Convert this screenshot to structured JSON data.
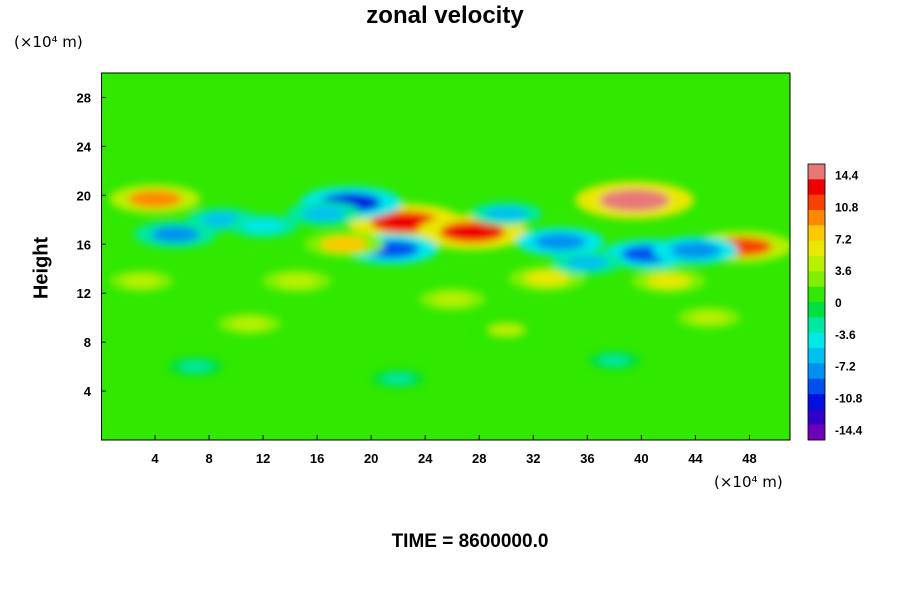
{
  "chart_data": {
    "type": "heatmap",
    "title": "zonal velocity",
    "xlabel": "",
    "ylabel": "Height",
    "x_unit_label": "(×10⁴ m)",
    "y_unit_label": "(×10⁴ m)",
    "x_range": [
      0,
      51
    ],
    "y_range": [
      0,
      30
    ],
    "x_ticks": [
      4,
      8,
      12,
      16,
      20,
      24,
      28,
      32,
      36,
      40,
      44,
      48
    ],
    "y_ticks": [
      4,
      8,
      12,
      16,
      20,
      24,
      28
    ],
    "colorbar": {
      "tick_values": [
        14.4,
        10.8,
        7.2,
        3.6,
        0,
        -3.6,
        -7.2,
        -10.8,
        -14.4
      ],
      "tick_labels": [
        "14.4",
        "10.8",
        "7.2",
        "3.6",
        "0",
        "-3.6",
        "-7.2",
        "-10.8",
        "-14.4"
      ],
      "range": [
        -15.6,
        15.6
      ],
      "colors": [
        "#e87878",
        "#ee0000",
        "#f84000",
        "#ff8800",
        "#ffc800",
        "#e8e800",
        "#b8f000",
        "#80f000",
        "#30e800",
        "#00e040",
        "#00e8a0",
        "#00e8e8",
        "#00c0f0",
        "#0090f0",
        "#0050f0",
        "#0010e0",
        "#3000c8",
        "#7000b8"
      ]
    },
    "background_value": 0.5,
    "features": [
      {
        "x": 22.5,
        "y": 17.8,
        "value": 13.5
      },
      {
        "x": 27.5,
        "y": 17.0,
        "value": 12.5
      },
      {
        "x": 39.5,
        "y": 19.6,
        "value": 14.0
      },
      {
        "x": 4.0,
        "y": 19.7,
        "value": 9.0
      },
      {
        "x": 47.5,
        "y": 15.8,
        "value": 10.5
      },
      {
        "x": 18.5,
        "y": 19.4,
        "value": -11.0
      },
      {
        "x": 21.5,
        "y": 15.6,
        "value": -9.5
      },
      {
        "x": 34.0,
        "y": 16.2,
        "value": -8.5
      },
      {
        "x": 40.5,
        "y": 15.2,
        "value": -9.0
      },
      {
        "x": 44.0,
        "y": 15.5,
        "value": -8.0
      },
      {
        "x": 5.5,
        "y": 16.8,
        "value": -7.5
      },
      {
        "x": 9.0,
        "y": 18.0,
        "value": -5.5
      },
      {
        "x": 12.0,
        "y": 17.5,
        "value": -5.0
      },
      {
        "x": 16.5,
        "y": 18.5,
        "value": -6.0
      },
      {
        "x": 30.0,
        "y": 18.5,
        "value": -5.5
      },
      {
        "x": 33.0,
        "y": 13.2,
        "value": 6.5
      },
      {
        "x": 36.0,
        "y": 14.5,
        "value": -5.5
      },
      {
        "x": 18.0,
        "y": 16.0,
        "value": 7.0
      },
      {
        "x": 14.5,
        "y": 13.0,
        "value": 5.0
      },
      {
        "x": 26.0,
        "y": 11.5,
        "value": 4.5
      },
      {
        "x": 42.0,
        "y": 13.0,
        "value": 6.0
      },
      {
        "x": 3.0,
        "y": 13.0,
        "value": 4.0
      },
      {
        "x": 11.0,
        "y": 9.5,
        "value": 4.0
      },
      {
        "x": 30.0,
        "y": 9.0,
        "value": 3.5
      },
      {
        "x": 45.0,
        "y": 10.0,
        "value": 4.0
      },
      {
        "x": 7.0,
        "y": 6.0,
        "value": -2.5
      },
      {
        "x": 22.0,
        "y": 5.0,
        "value": -2.0
      },
      {
        "x": 38.0,
        "y": 6.5,
        "value": -2.0
      }
    ]
  },
  "footer": {
    "time_label": "TIME = 8600000.0"
  }
}
